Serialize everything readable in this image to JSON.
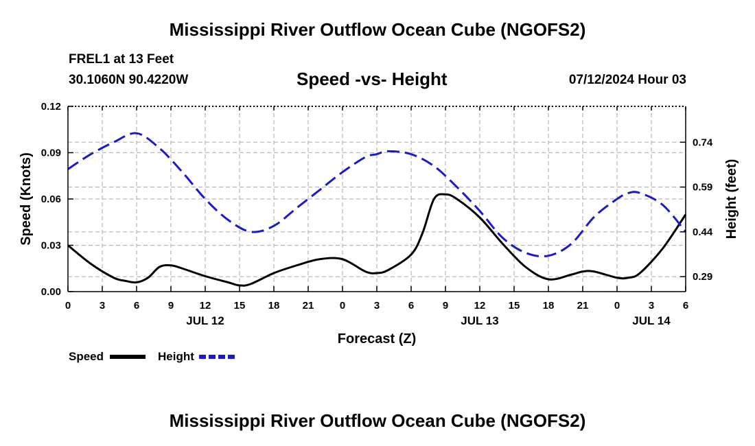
{
  "header": {
    "title": "Mississippi River Outflow Ocean Cube (NGOFS2)",
    "station_name": "FREL1 at 13 Feet",
    "station_coords": "30.1060N  90.4220W",
    "subtitle": "Speed -vs- Height",
    "datetime": "07/12/2024 Hour 03"
  },
  "footer": {
    "title": "Mississippi River Outflow Ocean Cube (NGOFS2)"
  },
  "colors": {
    "speed": "#000000",
    "height": "#1a1acc",
    "grid": "#bbbbbb"
  },
  "chart_data": {
    "type": "line",
    "xlabel": "Forecast (Z)",
    "ylabel": "Speed (Knots)",
    "y2label": "Height (feet)",
    "xlim": [
      0,
      54
    ],
    "ylim": [
      0,
      0.12
    ],
    "y2lim": [
      0.24,
      0.86
    ],
    "x_ticks": [
      0,
      3,
      6,
      9,
      12,
      15,
      18,
      21,
      24,
      27,
      30,
      33,
      36,
      39,
      42,
      45,
      48,
      51,
      54
    ],
    "x_tick_labels": [
      "0",
      "3",
      "6",
      "9",
      "12",
      "15",
      "18",
      "21",
      "0",
      "3",
      "6",
      "9",
      "12",
      "15",
      "18",
      "21",
      "0",
      "3",
      "6"
    ],
    "y_ticks": [
      0,
      0.03,
      0.06,
      0.09,
      0.12
    ],
    "y_tick_labels": [
      "0.00",
      "0.03",
      "0.06",
      "0.09",
      "0.12"
    ],
    "y2_ticks": [
      0.29,
      0.44,
      0.59,
      0.74
    ],
    "y2_tick_labels": [
      "0.29",
      "0.44",
      "0.59",
      "0.74"
    ],
    "date_labels": [
      {
        "x": 12,
        "label": "JUL 12"
      },
      {
        "x": 36,
        "label": "JUL 13"
      },
      {
        "x": 51,
        "label": "JUL 14"
      }
    ],
    "series": [
      {
        "name": "Speed",
        "axis": "left",
        "style": "solid",
        "x": [
          0,
          2,
          4,
          5,
          6,
          7,
          8,
          9,
          10,
          12,
          14,
          15,
          16,
          18,
          20,
          22,
          24,
          26,
          27,
          28,
          30,
          31,
          32,
          33,
          34,
          36,
          38,
          40,
          42,
          44,
          45,
          46,
          48,
          49,
          50,
          52,
          54
        ],
        "values": [
          0.03,
          0.018,
          0.009,
          0.007,
          0.006,
          0.009,
          0.016,
          0.017,
          0.015,
          0.01,
          0.006,
          0.004,
          0.005,
          0.012,
          0.017,
          0.021,
          0.021,
          0.013,
          0.012,
          0.014,
          0.024,
          0.038,
          0.06,
          0.063,
          0.06,
          0.048,
          0.031,
          0.016,
          0.008,
          0.011,
          0.013,
          0.013,
          0.009,
          0.009,
          0.012,
          0.028,
          0.05
        ]
      },
      {
        "name": "Height",
        "axis": "right",
        "style": "dashed",
        "x": [
          0,
          2,
          4,
          6,
          8,
          10,
          12,
          14,
          16,
          18,
          20,
          22,
          24,
          26,
          27,
          28,
          30,
          32,
          34,
          36,
          38,
          40,
          42,
          44,
          46,
          48,
          49,
          50,
          52,
          54
        ],
        "values": [
          0.65,
          0.7,
          0.74,
          0.77,
          0.72,
          0.64,
          0.55,
          0.48,
          0.44,
          0.46,
          0.52,
          0.58,
          0.64,
          0.69,
          0.7,
          0.71,
          0.7,
          0.66,
          0.59,
          0.51,
          0.42,
          0.37,
          0.36,
          0.4,
          0.49,
          0.55,
          0.57,
          0.57,
          0.53,
          0.44
        ]
      }
    ]
  }
}
